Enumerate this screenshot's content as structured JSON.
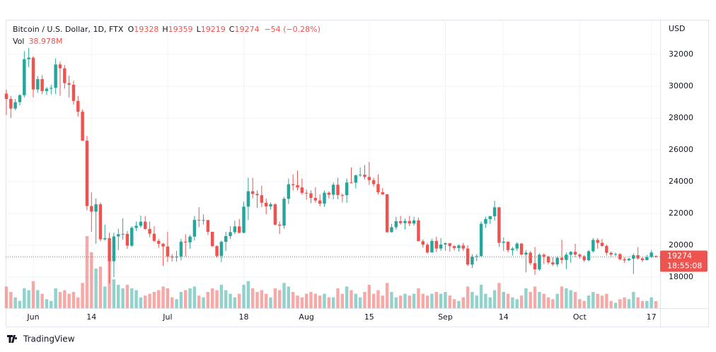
{
  "chart_data": {
    "type": "candlestick",
    "title": "Bitcoin / U.S. Dollar, 1D, FTX",
    "ohlc_labels": [
      "O",
      "H",
      "L",
      "C"
    ],
    "change": "−54 (−0.28%)",
    "volume_title": "Vol",
    "volume_label": "38.978M",
    "axis_unit": "USD",
    "countdown": "18:55:08",
    "brand": "TradingView",
    "categories": [
      null,
      null,
      null,
      null,
      null,
      null,
      "Jun",
      null,
      null,
      null,
      null,
      null,
      null,
      null,
      null,
      null,
      null,
      null,
      null,
      "14",
      null,
      null,
      null,
      null,
      null,
      null,
      null,
      null,
      null,
      null,
      null,
      null,
      null,
      null,
      null,
      null,
      "Jul",
      null,
      null,
      null,
      null,
      null,
      null,
      null,
      null,
      null,
      null,
      null,
      null,
      null,
      null,
      null,
      null,
      "18",
      null,
      null,
      null,
      null,
      null,
      null,
      null,
      null,
      null,
      null,
      null,
      null,
      null,
      "Aug",
      null,
      null,
      null,
      null,
      null,
      null,
      null,
      null,
      null,
      null,
      null,
      null,
      null,
      "15",
      null,
      null,
      null,
      null,
      null,
      null,
      null,
      null,
      null,
      null,
      null,
      null,
      null,
      null,
      null,
      null,
      "Sep",
      null,
      null,
      null,
      null,
      null,
      null,
      null,
      null,
      null,
      null,
      null,
      null,
      "14",
      null,
      null,
      null,
      null,
      null,
      null,
      null,
      null,
      null,
      null,
      null,
      null,
      null,
      null,
      null,
      null,
      "Oct",
      null,
      null,
      null,
      null,
      null,
      null,
      null,
      null,
      null,
      null,
      null,
      null,
      null,
      null,
      null,
      "17",
      null
    ],
    "open": [
      29540,
      29200,
      28600,
      29000,
      29440,
      31700,
      31800,
      29800,
      30450,
      29700,
      29850,
      29900,
      31370,
      31130,
      30200,
      30100,
      29080,
      28400,
      26580,
      22470,
      22120,
      22580,
      20380,
      20450,
      19000,
      20560,
      20700,
      20720,
      19980,
      21100,
      21230,
      21490,
      21030,
      20730,
      20280,
      20100,
      19930,
      19300,
      19240,
      19300,
      20230,
      20190,
      20550,
      21600,
      21590,
      21590,
      20850,
      19950,
      19330,
      20220,
      20580,
      20830,
      21190,
      20790,
      22430,
      23400,
      23230,
      23150,
      22680,
      22450,
      22580,
      21300,
      21240,
      22930,
      23840,
      23780,
      23640,
      23300,
      23270,
      22980,
      22820,
      22620,
      23310,
      23180,
      23810,
      23160,
      23150,
      23950,
      23940,
      24400,
      24440,
      24300,
      24100,
      23850,
      23340,
      23210,
      20830,
      21140,
      21520,
      21400,
      21530,
      21370,
      21570,
      20260,
      20040,
      19550,
      20280,
      19800,
      20050,
      20130,
      19950,
      19830,
      19990,
      19800,
      18790,
      19290,
      19320,
      21360,
      21650,
      21830,
      22390,
      20160,
      20230,
      19700,
      19800,
      20110,
      19420,
      19540,
      18880,
      18490,
      19410,
      19300,
      18930,
      18800,
      19220,
      19080,
      19410,
      19590,
      19420,
      19310,
      19060,
      19630,
      20340,
      20160,
      19960,
      19530,
      19420,
      19450,
      19130,
      19060,
      19160,
      19380,
      19180,
      19070,
      19270,
      19328
    ],
    "high": [
      29800,
      29400,
      29200,
      29500,
      32200,
      32400,
      31900,
      30650,
      30700,
      29950,
      30100,
      31750,
      31550,
      31330,
      30670,
      30350,
      29400,
      28550,
      26880,
      23330,
      22950,
      22700,
      21300,
      20800,
      20800,
      21050,
      21700,
      20900,
      21200,
      21500,
      21870,
      21850,
      21500,
      21200,
      20400,
      20150,
      20850,
      19450,
      19650,
      20400,
      20700,
      20650,
      21850,
      22400,
      21950,
      21600,
      20850,
      20000,
      20300,
      20850,
      21200,
      21550,
      21650,
      22750,
      24250,
      24250,
      23450,
      23750,
      22950,
      22700,
      22650,
      21500,
      23050,
      24200,
      24450,
      24700,
      24200,
      23500,
      23450,
      23650,
      23200,
      23450,
      23400,
      23950,
      24250,
      23250,
      24200,
      24900,
      24450,
      24900,
      25050,
      25250,
      24250,
      24450,
      23600,
      23230,
      21350,
      21800,
      21850,
      21680,
      21850,
      21800,
      21750,
      20380,
      20150,
      20400,
      20550,
      20450,
      20180,
      20150,
      20000,
      20050,
      20150,
      20000,
      19450,
      19450,
      21500,
      21800,
      21860,
      22800,
      22420,
      20500,
      20250,
      19900,
      20200,
      20150,
      19700,
      19650,
      19900,
      19500,
      19500,
      19350,
      19250,
      19300,
      20350,
      19550,
      19650,
      20100,
      19480,
      19400,
      19700,
      20450,
      20450,
      20400,
      20050,
      19620,
      19550,
      19500,
      19250,
      19220,
      19500,
      19900,
      19250,
      19400,
      19700,
      19359
    ],
    "low": [
      28200,
      28000,
      28500,
      28800,
      29300,
      31200,
      29300,
      29600,
      29500,
      29450,
      29500,
      29500,
      29400,
      29850,
      29300,
      28850,
      28100,
      26560,
      22200,
      20850,
      20100,
      20250,
      20300,
      17600,
      18000,
      19700,
      20350,
      19770,
      19900,
      20900,
      21100,
      20980,
      20500,
      20200,
      19850,
      18700,
      18950,
      18980,
      18980,
      19050,
      19300,
      19800,
      20300,
      21150,
      21300,
      20650,
      19900,
      19250,
      18950,
      19650,
      20400,
      20700,
      20750,
      20750,
      21600,
      22950,
      22350,
      22400,
      21950,
      22250,
      21250,
      20720,
      21050,
      22600,
      23450,
      23450,
      23200,
      22880,
      22650,
      22680,
      22450,
      22420,
      22950,
      22900,
      22900,
      22700,
      22680,
      23900,
      23580,
      24300,
      24150,
      23800,
      23700,
      23200,
      23150,
      20780,
      20800,
      21000,
      21300,
      21000,
      21200,
      21250,
      20250,
      19850,
      19500,
      19550,
      19580,
      19650,
      19660,
      19600,
      19680,
      19600,
      19650,
      18700,
      18570,
      19000,
      19300,
      21100,
      21350,
      21550,
      19900,
      19650,
      19550,
      19350,
      19650,
      19350,
      18300,
      18750,
      18150,
      18400,
      18850,
      18800,
      18700,
      18650,
      18850,
      18500,
      18900,
      19250,
      19150,
      18950,
      19000,
      19550,
      19800,
      19900,
      19350,
      19300,
      19320,
      19050,
      18900,
      19000,
      18200,
      19100,
      18950,
      19050,
      19200,
      19219
    ],
    "close": [
      29200,
      28600,
      29000,
      29440,
      31700,
      31800,
      29800,
      30450,
      29700,
      29850,
      29900,
      31370,
      31130,
      30200,
      30100,
      29080,
      28400,
      26580,
      22470,
      22120,
      22580,
      20380,
      20450,
      19000,
      20560,
      20700,
      20720,
      19980,
      21100,
      21230,
      21490,
      21030,
      20730,
      20280,
      20100,
      19930,
      19300,
      19240,
      19300,
      20230,
      20190,
      20550,
      21600,
      21590,
      21590,
      20850,
      19950,
      19330,
      20220,
      20580,
      20830,
      21190,
      20790,
      22430,
      23400,
      23230,
      23150,
      22680,
      22450,
      22580,
      21300,
      21240,
      22930,
      23840,
      23780,
      23640,
      23300,
      23270,
      22980,
      22820,
      22620,
      23310,
      23180,
      23810,
      23160,
      23150,
      23950,
      23940,
      24400,
      24440,
      24300,
      24100,
      23850,
      23340,
      23210,
      20830,
      21140,
      21520,
      21400,
      21530,
      21370,
      21570,
      20260,
      20040,
      19550,
      20280,
      19800,
      20050,
      20130,
      19950,
      19830,
      19990,
      19800,
      18790,
      19290,
      19320,
      21360,
      21650,
      21830,
      22390,
      20160,
      20230,
      19700,
      19800,
      20110,
      19420,
      19540,
      18880,
      18490,
      19410,
      19300,
      18930,
      18800,
      19220,
      19080,
      19410,
      19590,
      19420,
      19310,
      19060,
      19630,
      20340,
      20160,
      19960,
      19530,
      19420,
      19450,
      19130,
      19060,
      19160,
      19380,
      19180,
      19070,
      19270,
      19550,
      19274
    ],
    "volume": [
      120,
      90,
      60,
      40,
      110,
      100,
      150,
      100,
      80,
      50,
      40,
      110,
      90,
      100,
      80,
      90,
      60,
      140,
      400,
      310,
      220,
      230,
      120,
      270,
      160,
      130,
      110,
      130,
      110,
      100,
      60,
      70,
      80,
      90,
      100,
      120,
      110,
      60,
      50,
      90,
      100,
      110,
      120,
      70,
      60,
      90,
      110,
      100,
      130,
      100,
      80,
      60,
      80,
      130,
      150,
      110,
      90,
      100,
      80,
      60,
      110,
      100,
      140,
      120,
      90,
      70,
      60,
      80,
      90,
      80,
      70,
      80,
      60,
      60,
      110,
      80,
      120,
      100,
      80,
      60,
      90,
      130,
      80,
      100,
      70,
      140,
      90,
      60,
      70,
      80,
      70,
      80,
      110,
      80,
      70,
      80,
      90,
      80,
      90,
      70,
      50,
      40,
      60,
      120,
      90,
      70,
      130,
      80,
      60,
      100,
      140,
      90,
      80,
      60,
      50,
      70,
      110,
      90,
      120,
      90,
      80,
      60,
      50,
      80,
      120,
      110,
      100,
      90,
      50,
      40,
      70,
      90,
      80,
      70,
      80,
      40,
      30,
      50,
      60,
      50,
      90,
      60,
      40,
      40,
      60,
      38.978
    ],
    "up_color": "#26a69a",
    "down_color": "#ef5350",
    "volume_opacity": 0.5,
    "ylim": [
      16050,
      34180
    ],
    "yticks": [
      18000,
      20000,
      22000,
      24000,
      26000,
      28000,
      30000,
      32000
    ],
    "volume_ylim": [
      0,
      1600
    ],
    "grid": true
  }
}
